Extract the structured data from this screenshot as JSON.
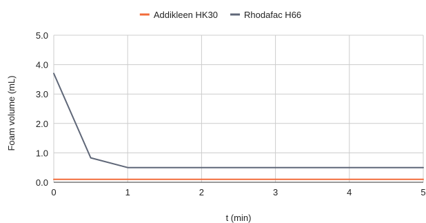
{
  "chart_data": {
    "type": "line",
    "title": "",
    "xlabel": "t (min)",
    "ylabel": "Foam volume (mL)",
    "xlim": [
      0,
      5
    ],
    "ylim": [
      0,
      5
    ],
    "x_ticks": [
      "0",
      "1",
      "2",
      "3",
      "4",
      "5"
    ],
    "y_ticks": [
      "0.0",
      "1.0",
      "2.0",
      "3.0",
      "4.0",
      "5.0"
    ],
    "grid": true,
    "legend_position": "top",
    "series": [
      {
        "name": "Addikleen HK30",
        "color": "#f26b3a",
        "x": [
          0,
          0.5,
          1,
          2,
          3,
          4,
          5
        ],
        "y": [
          0.1,
          0.1,
          0.1,
          0.1,
          0.1,
          0.1,
          0.1
        ]
      },
      {
        "name": "Rhodafac H66",
        "color": "#5f6778",
        "x": [
          0,
          0.5,
          1,
          2,
          3,
          4,
          5
        ],
        "y": [
          3.7,
          0.83,
          0.5,
          0.5,
          0.5,
          0.5,
          0.5
        ]
      }
    ]
  }
}
